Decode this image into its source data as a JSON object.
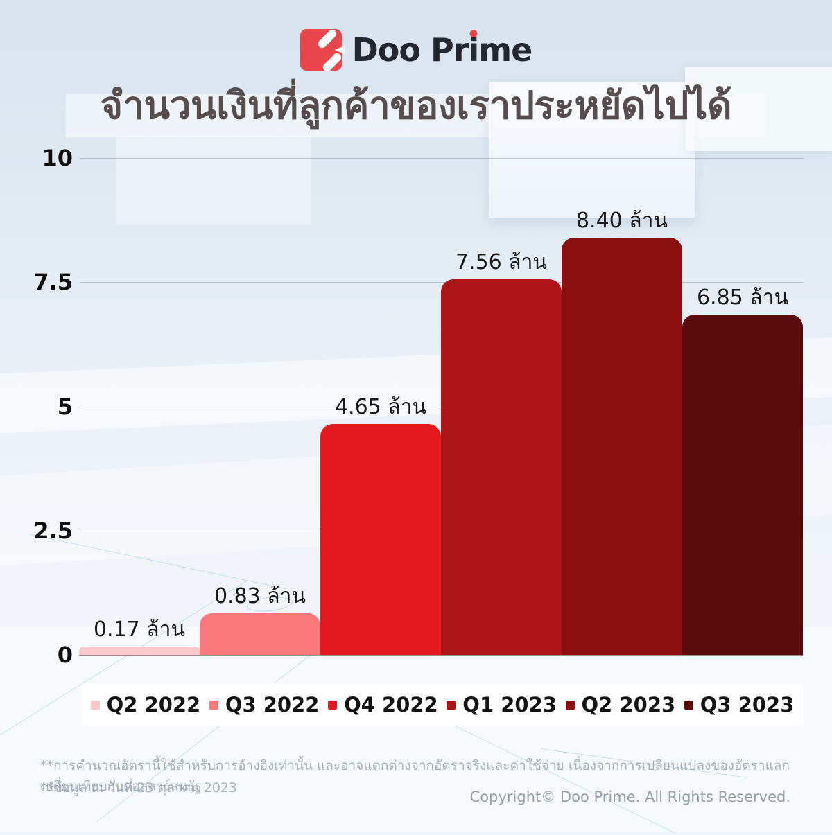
{
  "logo": {
    "text": "Doo Prime",
    "text_parts": {
      "pre": "Doo Pr",
      "i": "i",
      "post": "me"
    },
    "brand_red": "#e9474b"
  },
  "title": "จำนวนเงินที่ลูกค้าของเราประหยัดไปได้",
  "chart_data": {
    "type": "bar",
    "title": "จำนวนเงินที่ลูกค้าของเราประหยัดไปได้",
    "categories": [
      "Q2 2022",
      "Q3 2022",
      "Q4 2022",
      "Q1 2023",
      "Q2 2023",
      "Q3 2023"
    ],
    "values": [
      0.17,
      0.83,
      4.65,
      7.56,
      8.4,
      6.85
    ],
    "value_labels": [
      "0.17 ล้าน",
      "0.83 ล้าน",
      "4.65 ล้าน",
      "7.56 ล้าน",
      "8.40 ล้าน",
      "6.85 ล้าน"
    ],
    "bar_colors": [
      "#fac7ca",
      "#f8787c",
      "#e3191f",
      "#ad1415",
      "#8b0f10",
      "#5a0b0c"
    ],
    "unit": "ล้าน",
    "xlabel": "",
    "ylabel": "",
    "ylim": [
      0,
      10
    ],
    "yticks": [
      10,
      7.5,
      5,
      2.5,
      0
    ],
    "ytick_labels": [
      "10",
      "7.5",
      "5",
      "2.5",
      "0"
    ],
    "grid": true,
    "legend_position": "bottom"
  },
  "footnotes": {
    "line1": "**การคำนวณอัตรานี้ใช้สำหรับการอ้างอิงเท่านั้น และอาจแตกต่างจากอัตราจริงและค่าใช้จ่าย เนื่องจากการเปลี่ยนแปลงของอัตราแลกเปลี่ยนเทียบกับดอลลาร์สหรัฐ",
    "line2": "**ข้อมูล ณ วันที่ 23 ตุลาคม 2023"
  },
  "copyright": "Copyright© Doo Prime. All Rights Reserved."
}
